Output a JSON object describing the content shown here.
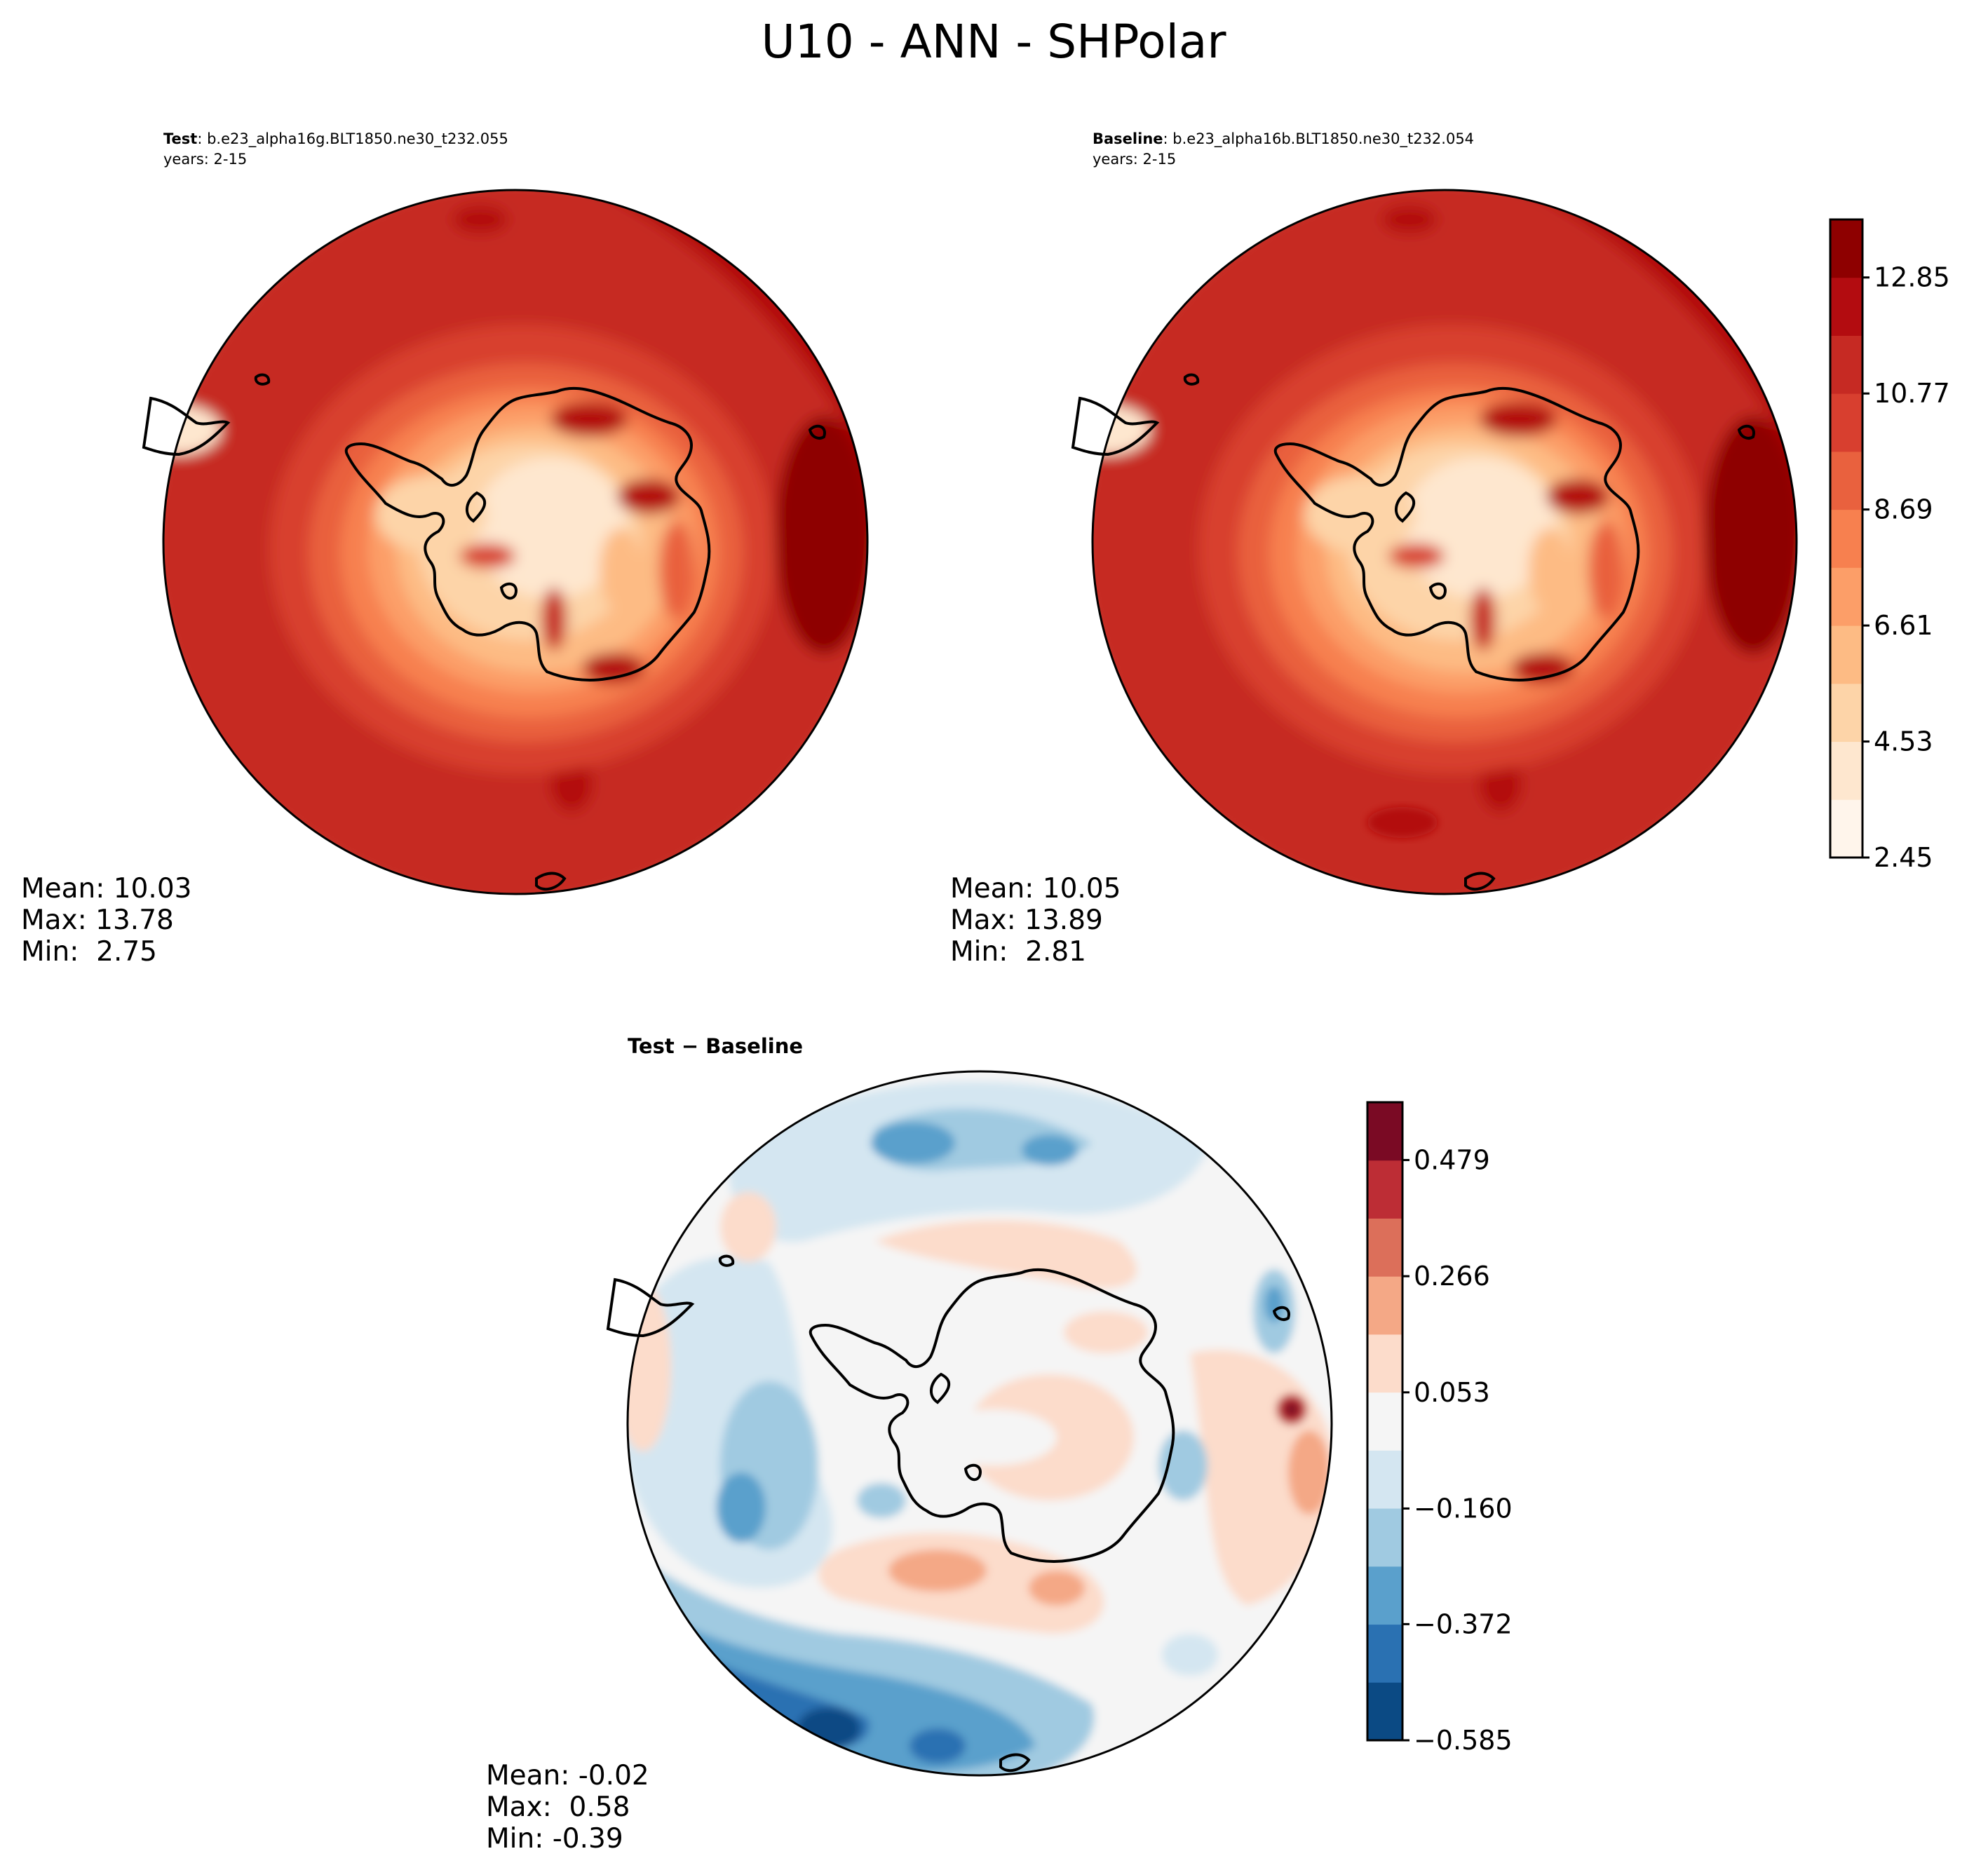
{
  "figure": {
    "title": "U10 - ANN - SHPolar",
    "colors": {
      "coast": "#000000",
      "land_fill_none": "true"
    }
  },
  "chart_data": [
    {
      "id": "test",
      "type": "heatmap",
      "projection": "south-polar-stereographic",
      "label_bold": "Test",
      "label_rest": ": b.e23_alpha16g.BLT1850.ne30_t232.055",
      "years": "years: 2-15",
      "stats": {
        "mean": "Mean: 10.03",
        "max": "Max: 13.78",
        "min": "Min:  2.75"
      },
      "colormap": "Reds",
      "levels": [
        2.45,
        3.49,
        4.53,
        5.57,
        6.61,
        7.65,
        8.69,
        9.73,
        10.77,
        11.81,
        12.85,
        13.89
      ],
      "field_description": "annual mean 10 m wind speed, high (10-13.8) over Southern Ocean, low (2.8-7) over Antarctic interior"
    },
    {
      "id": "baseline",
      "type": "heatmap",
      "projection": "south-polar-stereographic",
      "label_bold": "Baseline",
      "label_rest": ": b.e23_alpha16b.BLT1850.ne30_t232.054",
      "years": "years: 2-15",
      "stats": {
        "mean": "Mean: 10.05",
        "max": "Max: 13.89",
        "min": "Min:  2.81"
      },
      "colormap": "Reds",
      "levels": [
        2.45,
        3.49,
        4.53,
        5.57,
        6.61,
        7.65,
        8.69,
        9.73,
        10.77,
        11.81,
        12.85,
        13.89
      ]
    },
    {
      "id": "diff",
      "type": "heatmap",
      "projection": "south-polar-stereographic",
      "label_bold": "Test − Baseline",
      "stats": {
        "mean": "Mean: -0.02",
        "max": "Max:  0.58",
        "min": "Min: -0.39"
      },
      "colormap": "RdBu_r",
      "levels": [
        -0.585,
        -0.479,
        -0.372,
        -0.266,
        -0.16,
        -0.053,
        0.053,
        0.16,
        0.266,
        0.372,
        0.479,
        0.585
      ]
    }
  ],
  "colorbars": {
    "abs": {
      "colors": [
        "#fff5eb",
        "#fee7cf",
        "#fdd4a8",
        "#fdbb84",
        "#fc9e68",
        "#f7804f",
        "#e9613e",
        "#d83f2f",
        "#c62a23",
        "#b30c10",
        "#8e0000"
      ],
      "ticks": [
        "2.45",
        "4.53",
        "6.61",
        "8.69",
        "10.77",
        "12.85"
      ],
      "tick_values": [
        2.45,
        4.53,
        6.61,
        8.69,
        10.77,
        12.85
      ],
      "range": [
        2.45,
        13.89
      ]
    },
    "diff": {
      "colors": [
        "#0b4a84",
        "#2a71b2",
        "#5aa0cc",
        "#a0cae1",
        "#d4e6f1",
        "#f5f5f5",
        "#fcdccb",
        "#f4a886",
        "#dc6f5a",
        "#bd2d35",
        "#7a0a24"
      ],
      "ticks": [
        "0.479",
        "0.266",
        "0.053",
        "−0.160",
        "−0.372",
        "−0.585"
      ],
      "tick_values": [
        0.479,
        0.266,
        0.053,
        -0.16,
        -0.372,
        -0.585
      ],
      "range": [
        -0.585,
        0.585
      ]
    }
  }
}
